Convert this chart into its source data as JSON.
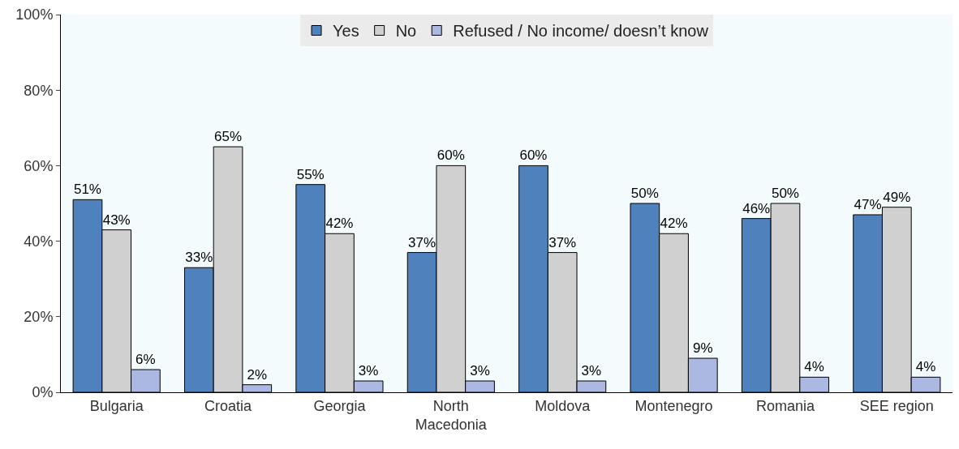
{
  "chart_data": {
    "type": "bar",
    "categories": [
      "Bulgaria",
      "Croatia",
      "Georgia",
      "North Macedonia",
      "Moldova",
      "Montenegro",
      "Romania",
      "SEE region"
    ],
    "series": [
      {
        "name": "Yes",
        "color": "#4f81bd",
        "values": [
          51,
          33,
          55,
          37,
          60,
          50,
          46,
          47
        ],
        "value_labels": [
          "51%",
          "33%",
          "55%",
          "37%",
          "60%",
          "50%",
          "46%",
          "47%"
        ]
      },
      {
        "name": "No",
        "color": "#d0d0d0",
        "values": [
          43,
          65,
          42,
          60,
          37,
          42,
          50,
          49
        ],
        "value_labels": [
          "43%",
          "65%",
          "42%",
          "60%",
          "37%",
          "42%",
          "50%",
          "49%"
        ]
      },
      {
        "name": "Refused / No income/ doesn’t know",
        "color": "#aab8e2",
        "values": [
          6,
          2,
          3,
          3,
          3,
          9,
          4,
          4
        ],
        "value_labels": [
          "6%",
          "2%",
          "3%",
          "3%",
          "3%",
          "9%",
          "4%",
          "4%"
        ]
      }
    ],
    "ylim": [
      0,
      100
    ],
    "yticks": [
      {
        "value": 0,
        "label": "0%"
      },
      {
        "value": 20,
        "label": "20%"
      },
      {
        "value": 40,
        "label": "40%"
      },
      {
        "value": 60,
        "label": "60%"
      },
      {
        "value": 80,
        "label": "80%"
      },
      {
        "value": 100,
        "label": "100%"
      }
    ],
    "grid": false,
    "legend": "top"
  }
}
